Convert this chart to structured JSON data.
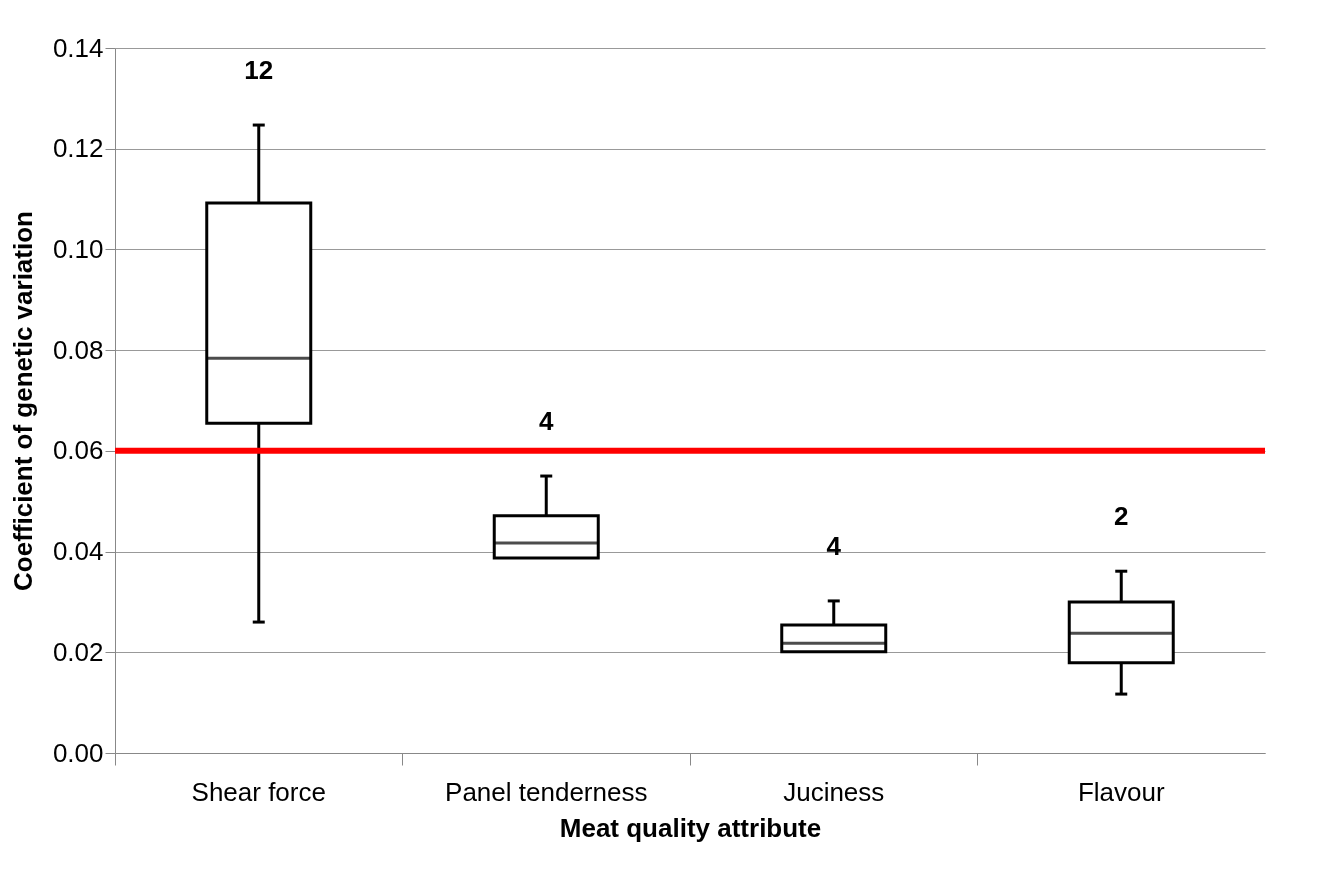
{
  "chart_data": {
    "type": "box",
    "xlabel": "Meat quality attribute",
    "ylabel": "Coefficient of genetic variation",
    "categories": [
      "Shear force",
      "Panel tenderness",
      "Juciness",
      "Flavour"
    ],
    "boxes": [
      {
        "low": 0.026,
        "q1": 0.0655,
        "median": 0.0784,
        "q3": 0.1092,
        "high": 0.1247
      },
      {
        "low": 0.0387,
        "q1": 0.0387,
        "median": 0.0417,
        "q3": 0.0471,
        "high": 0.055
      },
      {
        "low": 0.0201,
        "q1": 0.0201,
        "median": 0.0218,
        "q3": 0.0254,
        "high": 0.0302
      },
      {
        "low": 0.0117,
        "q1": 0.0179,
        "median": 0.0238,
        "q3": 0.03,
        "high": 0.0361
      }
    ],
    "ylim": [
      0,
      0.14
    ],
    "yticks": [
      {
        "value": 0,
        "label": "0.00"
      },
      {
        "value": 0.02,
        "label": "0.02"
      },
      {
        "value": 0.04,
        "label": "0.04"
      },
      {
        "value": 0.06,
        "label": "0.06"
      },
      {
        "value": 0.08,
        "label": "0.08"
      },
      {
        "value": 0.1,
        "label": "0.10"
      },
      {
        "value": 0.12,
        "label": "0.12"
      },
      {
        "value": 0.14,
        "label": "0.14"
      }
    ],
    "grid": "y",
    "ref_lines": [
      {
        "axis": "y",
        "value": 0.06,
        "color": "#ff0000"
      }
    ],
    "annotations": [
      "12",
      "4",
      "4",
      "2"
    ]
  }
}
